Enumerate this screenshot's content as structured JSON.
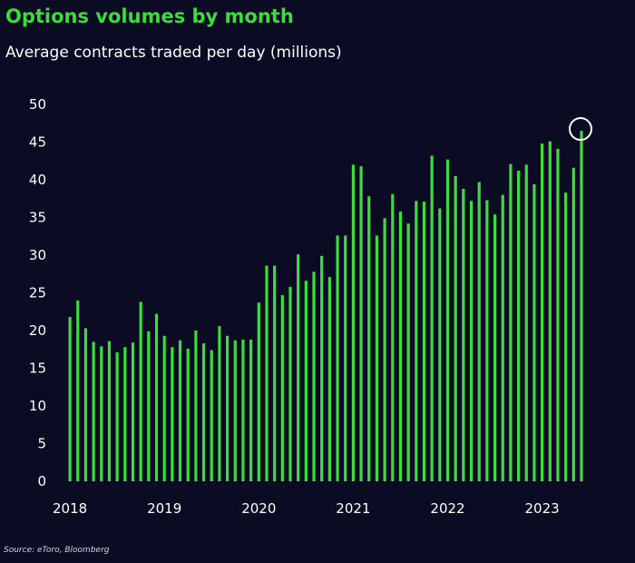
{
  "title": "Options volumes by month",
  "subtitle": "Average contracts traded per day (millions)",
  "source": "Source: eToro, Bloomberg",
  "colors": {
    "background": "#0b0b24",
    "bar": "#3ddc3d",
    "title": "#3ddc3d",
    "text": "#ffffff"
  },
  "chart_data": {
    "type": "bar",
    "title": "Options volumes by month",
    "subtitle": "Average contracts traded per day (millions)",
    "ylim": [
      0,
      50
    ],
    "yticks": [
      0,
      5,
      10,
      15,
      20,
      25,
      30,
      35,
      40,
      45,
      50
    ],
    "xticks": [
      "2018",
      "2019",
      "2020",
      "2021",
      "2022",
      "2023"
    ],
    "grid": false,
    "highlight": {
      "month": "2023-06",
      "marker": "circle"
    },
    "categories": [
      "2018-01",
      "2018-02",
      "2018-03",
      "2018-04",
      "2018-05",
      "2018-06",
      "2018-07",
      "2018-08",
      "2018-09",
      "2018-10",
      "2018-11",
      "2018-12",
      "2019-01",
      "2019-02",
      "2019-03",
      "2019-04",
      "2019-05",
      "2019-06",
      "2019-07",
      "2019-08",
      "2019-09",
      "2019-10",
      "2019-11",
      "2019-12",
      "2020-01",
      "2020-02",
      "2020-03",
      "2020-04",
      "2020-05",
      "2020-06",
      "2020-07",
      "2020-08",
      "2020-09",
      "2020-10",
      "2020-11",
      "2020-12",
      "2021-01",
      "2021-02",
      "2021-03",
      "2021-04",
      "2021-05",
      "2021-06",
      "2021-07",
      "2021-08",
      "2021-09",
      "2021-10",
      "2021-11",
      "2021-12",
      "2022-01",
      "2022-02",
      "2022-03",
      "2022-04",
      "2022-05",
      "2022-06",
      "2022-07",
      "2022-08",
      "2022-09",
      "2022-10",
      "2022-11",
      "2022-12",
      "2023-01",
      "2023-02",
      "2023-03",
      "2023-04",
      "2023-05",
      "2023-06"
    ],
    "values": [
      21.8,
      24.0,
      20.3,
      18.5,
      17.9,
      18.6,
      17.1,
      17.8,
      18.4,
      23.8,
      19.9,
      22.2,
      19.3,
      17.8,
      18.7,
      17.6,
      20.0,
      18.3,
      17.4,
      20.6,
      19.3,
      18.7,
      18.8,
      18.8,
      23.7,
      28.6,
      28.6,
      24.7,
      25.8,
      30.1,
      26.6,
      27.8,
      29.9,
      27.1,
      32.6,
      32.6,
      42.0,
      41.8,
      37.8,
      32.6,
      34.9,
      38.1,
      35.8,
      34.2,
      37.2,
      37.1,
      43.2,
      36.2,
      42.7,
      40.5,
      38.8,
      37.2,
      39.7,
      37.3,
      35.4,
      38.0,
      42.1,
      41.2,
      42.0,
      39.4,
      44.8,
      45.1,
      44.1,
      38.3,
      41.6,
      46.5
    ]
  }
}
